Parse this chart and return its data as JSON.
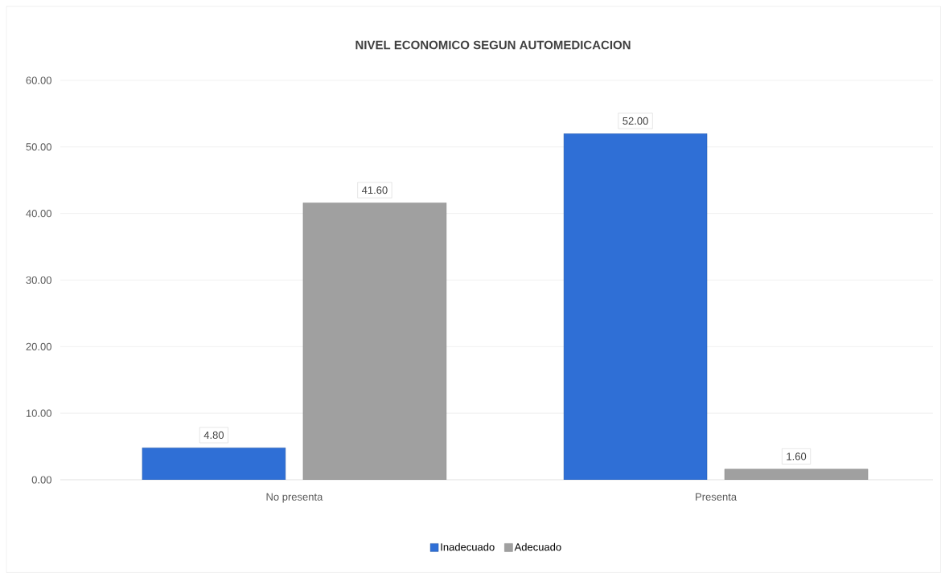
{
  "chart_data": {
    "type": "bar",
    "title": "NIVEL ECONOMICO SEGUN AUTOMEDICACION",
    "categories": [
      "No presenta",
      "Presenta"
    ],
    "series": [
      {
        "name": "Inadecuado",
        "color": "#2f6fd6",
        "values": [
          4.8,
          52.0
        ],
        "value_labels": [
          "4.80",
          "52.00"
        ]
      },
      {
        "name": "Adecuado",
        "color": "#a0a0a0",
        "values": [
          41.6,
          1.6
        ],
        "value_labels": [
          "41.60",
          "1.60"
        ]
      }
    ],
    "ylim": [
      0,
      60
    ],
    "yticks": [
      {
        "value": 0,
        "label": "0.00"
      },
      {
        "value": 10,
        "label": "10.00"
      },
      {
        "value": 20,
        "label": "20.00"
      },
      {
        "value": 30,
        "label": "30.00"
      },
      {
        "value": 40,
        "label": "40.00"
      },
      {
        "value": 50,
        "label": "50.00"
      },
      {
        "value": 60,
        "label": "60.00"
      }
    ],
    "grid": "y",
    "legend": "bottom"
  }
}
